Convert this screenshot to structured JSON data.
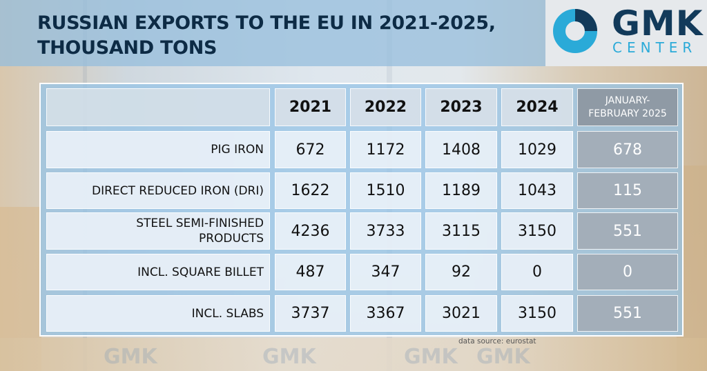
{
  "title": {
    "line1": "RUSSIAN EXPORTS TO THE EU IN 2021-2025,",
    "line2": "THOUSAND TONS"
  },
  "logo": {
    "name": "GMK",
    "sub": "CENTER",
    "colors": {
      "dark": "#123a5a",
      "accent": "#2aaad8"
    }
  },
  "watermark_text": [
    "GMK",
    "GMK",
    "GMK",
    "GMK"
  ],
  "source": "data source: eurostat",
  "chart_data": {
    "type": "table",
    "title": "RUSSIAN EXPORTS TO THE EU IN 2021-2025, THOUSAND TONS",
    "columns": [
      "2021",
      "2022",
      "2023",
      "2024",
      "JANUARY-\nFEBRUARY 2025"
    ],
    "rows": [
      {
        "label": "PIG IRON",
        "values": [
          "672",
          "1172",
          "1408",
          "1029",
          "678"
        ]
      },
      {
        "label": "DIRECT REDUCED IRON (DRI)",
        "values": [
          "1622",
          "1510",
          "1189",
          "1043",
          "115"
        ]
      },
      {
        "label": "STEEL SEMI-FINISHED PRODUCTS",
        "values": [
          "4236",
          "3733",
          "3115",
          "3150",
          "551"
        ]
      },
      {
        "label": "INCL. SQUARE BILLET",
        "values": [
          "487",
          "347",
          "92",
          "0",
          "0"
        ]
      },
      {
        "label": "INCL. SLABS",
        "values": [
          "3737",
          "3367",
          "3021",
          "3150",
          "551"
        ]
      }
    ]
  }
}
